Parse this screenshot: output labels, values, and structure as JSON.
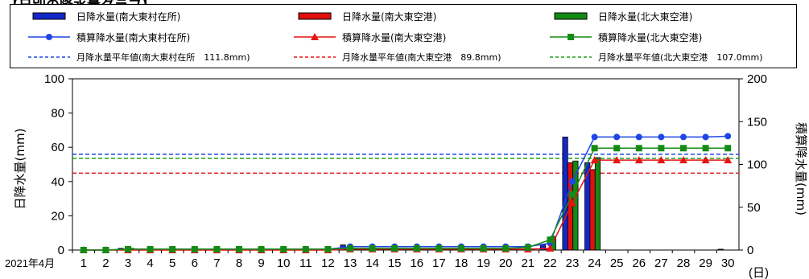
{
  "page": {
    "title": "【日別の降水量グラフ】"
  },
  "legend": {
    "items": [
      {
        "label": "日降水量(南大東村在所)",
        "kind": "bar",
        "color": "#1428c8"
      },
      {
        "label": "日降水量(南大東空港)",
        "kind": "bar",
        "color": "#e01010"
      },
      {
        "label": "日降水量(北大東空港)",
        "kind": "bar",
        "color": "#148a14"
      },
      {
        "label": "積算降水量(南大東村在所)",
        "kind": "line-circle",
        "color": "#1e46e6"
      },
      {
        "label": "積算降水量(南大東空港)",
        "kind": "line-triangle",
        "color": "#e61414"
      },
      {
        "label": "積算降水量(北大東空港)",
        "kind": "line-square",
        "color": "#148c14"
      },
      {
        "label": "月降水量平年値(南大東村在所　111.8mm)",
        "kind": "dashed",
        "color": "#1e46e6"
      },
      {
        "label": "月降水量平年値(南大東空港　89.8mm)",
        "kind": "dashed",
        "color": "#e61414"
      },
      {
        "label": "月降水量平年値(北大東空港　107.0mm)",
        "kind": "dashed",
        "color": "#1ea01e"
      }
    ]
  },
  "chart_data": {
    "type": "bar",
    "x_start_label": "2021年4月",
    "x_unit_label": "(日)",
    "ylabel_left": "日降水量(mm)",
    "ylabel_right": "積算降水量(mm)",
    "ylim_left": [
      0,
      100
    ],
    "ylim_right": [
      0,
      200
    ],
    "yticks_left": [
      0,
      20,
      40,
      60,
      80,
      100
    ],
    "yticks_right": [
      0,
      50,
      100,
      150,
      200
    ],
    "categories": [
      "1",
      "2",
      "3",
      "4",
      "5",
      "6",
      "7",
      "8",
      "9",
      "10",
      "11",
      "12",
      "13",
      "14",
      "15",
      "16",
      "17",
      "18",
      "19",
      "20",
      "21",
      "22",
      "23",
      "24",
      "25",
      "26",
      "27",
      "28",
      "29",
      "30"
    ],
    "bars": [
      {
        "name": "日降水量(南大東村在所)",
        "color": "#1428c8",
        "values": [
          0,
          0,
          1,
          0,
          0,
          0,
          0,
          0,
          0,
          0,
          0,
          0,
          3,
          0,
          0,
          0,
          0,
          0,
          0,
          0,
          0,
          3,
          66,
          51,
          0,
          0,
          0,
          0,
          0,
          0.5
        ]
      },
      {
        "name": "日降水量(南大東空港)",
        "color": "#e01010",
        "values": [
          0,
          0,
          0,
          0,
          0,
          0,
          0,
          0,
          0,
          0,
          0,
          0,
          0,
          0,
          0,
          0,
          0,
          0,
          0,
          0,
          0,
          1,
          51,
          47,
          0,
          0,
          0,
          0,
          0,
          0
        ]
      },
      {
        "name": "日降水量(北大東空港)",
        "color": "#148a14",
        "values": [
          0,
          0,
          1,
          0,
          0,
          0,
          0,
          0,
          0,
          0,
          0,
          0,
          1,
          0,
          0,
          0,
          0,
          0,
          0,
          0,
          0,
          8,
          52,
          54,
          0,
          0,
          0,
          0,
          0,
          0
        ]
      }
    ],
    "cumulative": [
      {
        "name": "積算降水量(南大東村在所)",
        "color": "#1e46e6",
        "marker": "circle",
        "values": [
          0,
          0,
          1,
          1,
          1,
          1,
          1,
          1,
          1,
          1,
          1,
          1,
          4,
          4,
          4,
          4,
          4,
          4,
          4,
          4,
          4,
          8,
          80,
          132,
          132,
          132,
          132,
          132,
          132,
          133
        ]
      },
      {
        "name": "積算降水量(南大東空港)",
        "color": "#e61414",
        "marker": "triangle",
        "values": [
          0,
          0,
          0,
          0,
          0,
          0,
          0,
          0,
          0,
          0,
          0,
          0,
          1,
          1,
          1,
          1,
          1,
          1,
          1,
          1,
          1,
          2,
          55,
          105,
          105,
          105,
          105,
          105,
          105,
          105
        ]
      },
      {
        "name": "積算降水量(北大東空港)",
        "color": "#148c14",
        "marker": "square",
        "values": [
          0,
          0,
          1,
          1,
          1,
          1,
          1,
          1,
          1,
          1,
          1,
          1,
          2,
          2,
          2,
          2,
          2,
          2,
          2,
          2,
          3,
          12,
          65,
          119,
          119,
          119,
          119,
          119,
          119,
          119
        ]
      }
    ],
    "normals": [
      {
        "name": "月降水量平年値(南大東村在所　111.8mm)",
        "color": "#1e46e6",
        "value": 111.8
      },
      {
        "name": "月降水量平年値(南大東空港　89.8mm)",
        "color": "#e61414",
        "value": 89.8
      },
      {
        "name": "月降水量平年値(北大東空港　107.0mm)",
        "color": "#1ea01e",
        "value": 107.0
      }
    ]
  }
}
